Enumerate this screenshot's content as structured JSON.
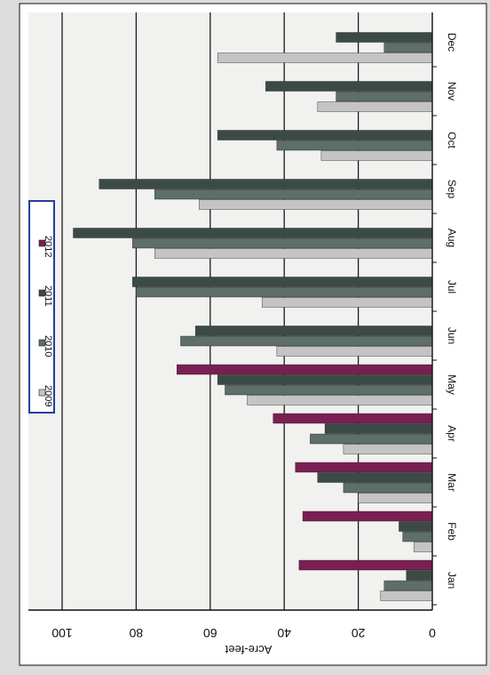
{
  "chart_data": {
    "type": "bar",
    "orientation": "horizontal",
    "rotated_180": true,
    "title": "",
    "xlabel": "",
    "ylabel": "Acre-feet",
    "xlim": [
      0,
      100
    ],
    "ticks": [
      0,
      20,
      40,
      60,
      80,
      100
    ],
    "grid": true,
    "legend_position": "top-right",
    "categories": [
      "Jan",
      "Feb",
      "Mar",
      "Apr",
      "May",
      "Jun",
      "Jul",
      "Aug",
      "Sep",
      "Oct",
      "Nov",
      "Dec"
    ],
    "series": [
      {
        "name": "2009",
        "color": "#c4c4c4",
        "values": [
          14,
          5,
          20,
          24,
          50,
          42,
          46,
          75,
          63,
          30,
          31,
          58
        ]
      },
      {
        "name": "2010",
        "color": "#5e6e6a",
        "values": [
          13,
          8,
          24,
          33,
          56,
          68,
          80,
          81,
          75,
          42,
          26,
          13
        ]
      },
      {
        "name": "2011",
        "color": "#3c4a46",
        "values": [
          7,
          9,
          31,
          29,
          58,
          64,
          81,
          97,
          90,
          58,
          45,
          26
        ]
      },
      {
        "name": "2012",
        "color": "#7a1f54",
        "values": [
          36,
          35,
          37,
          43,
          69,
          null,
          null,
          null,
          null,
          null,
          null,
          null
        ]
      }
    ]
  }
}
